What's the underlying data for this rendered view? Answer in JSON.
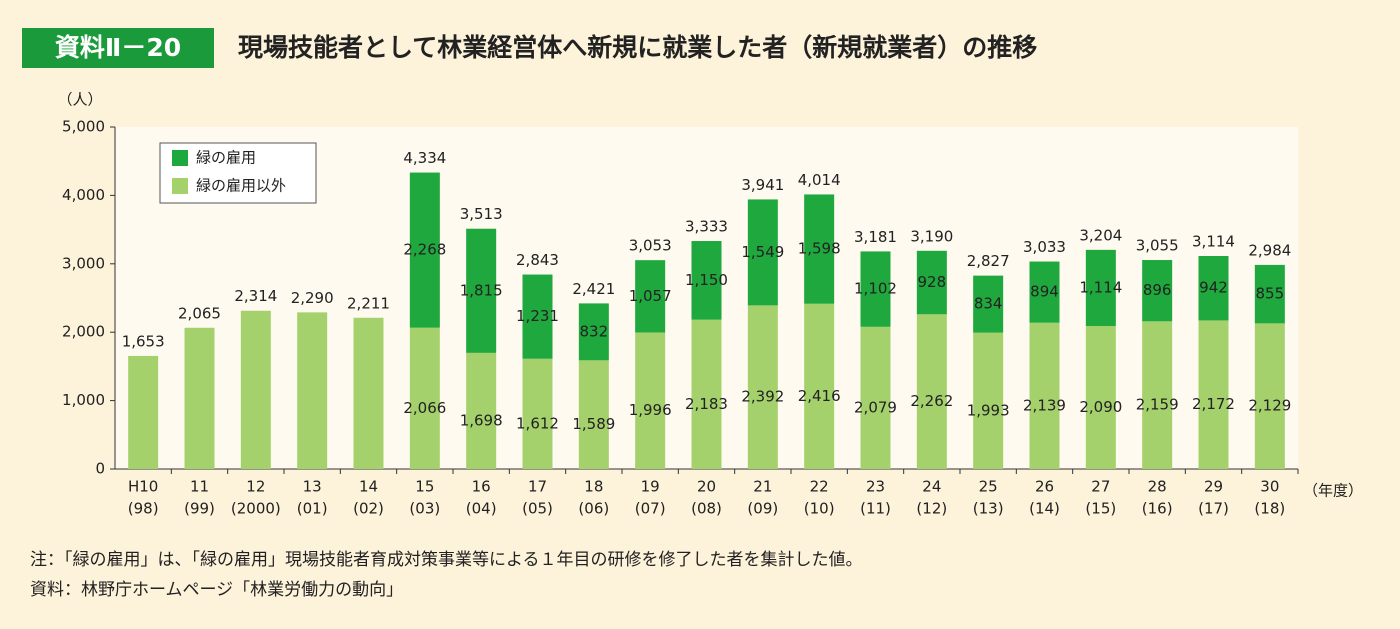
{
  "header": {
    "badge": "資料Ⅱ－20",
    "title": "現場技能者として林業経営体へ新規に就業した者（新規就業者）の推移"
  },
  "chart_data": {
    "type": "stacked-bar",
    "y_unit": "（人）",
    "x_unit": "（年度）",
    "categories": [
      [
        "H10",
        "(98)"
      ],
      [
        "11",
        "(99)"
      ],
      [
        "12",
        "(2000)"
      ],
      [
        "13",
        "(01)"
      ],
      [
        "14",
        "(02)"
      ],
      [
        "15",
        "(03)"
      ],
      [
        "16",
        "(04)"
      ],
      [
        "17",
        "(05)"
      ],
      [
        "18",
        "(06)"
      ],
      [
        "19",
        "(07)"
      ],
      [
        "20",
        "(08)"
      ],
      [
        "21",
        "(09)"
      ],
      [
        "22",
        "(10)"
      ],
      [
        "23",
        "(11)"
      ],
      [
        "24",
        "(12)"
      ],
      [
        "25",
        "(13)"
      ],
      [
        "26",
        "(14)"
      ],
      [
        "27",
        "(15)"
      ],
      [
        "28",
        "(16)"
      ],
      [
        "29",
        "(17)"
      ],
      [
        "30",
        "(18)"
      ]
    ],
    "series": [
      {
        "name": "緑の雇用以外",
        "color": "#a5d16c",
        "values": [
          1653,
          2065,
          2314,
          2290,
          2211,
          2066,
          1698,
          1612,
          1589,
          1996,
          2183,
          2392,
          2416,
          2079,
          2262,
          1993,
          2139,
          2090,
          2159,
          2172,
          2129
        ],
        "value_labels": [
          null,
          null,
          null,
          null,
          null,
          "2,066",
          "1,698",
          "1,612",
          "1,589",
          "1,996",
          "2,183",
          "2,392",
          "2,416",
          "2,079",
          "2,262",
          "1,993",
          "2,139",
          "2,090",
          "2,159",
          "2,172",
          "2,129"
        ]
      },
      {
        "name": "緑の雇用",
        "color": "#1fa83d",
        "values": [
          null,
          null,
          null,
          null,
          null,
          2268,
          1815,
          1231,
          832,
          1057,
          1150,
          1549,
          1598,
          1102,
          928,
          834,
          894,
          1114,
          896,
          942,
          855
        ],
        "value_labels": [
          null,
          null,
          null,
          null,
          null,
          "2,268",
          "1,815",
          "1,231",
          "832",
          "1,057",
          "1,150",
          "1,549",
          "1,598",
          "1,102",
          "928",
          "834",
          "894",
          "1,114",
          "896",
          "942",
          "855"
        ]
      }
    ],
    "totals": {
      "values": [
        1653,
        2065,
        2314,
        2290,
        2211,
        4334,
        3513,
        2843,
        2421,
        3053,
        3333,
        3941,
        4014,
        3181,
        3190,
        2827,
        3033,
        3204,
        3055,
        3114,
        2984
      ],
      "value_labels": [
        "1,653",
        "2,065",
        "2,314",
        "2,290",
        "2,211",
        "4,334",
        "3,513",
        "2,843",
        "2,421",
        "3,053",
        "3,333",
        "3,941",
        "4,014",
        "3,181",
        "3,190",
        "2,827",
        "3,033",
        "3,204",
        "3,055",
        "3,114",
        "2,984"
      ]
    },
    "ylim": [
      0,
      5000
    ],
    "yticks": [
      0,
      {
        "value": 1000,
        "label": "1,000"
      },
      {
        "value": 2000,
        "label": "2,000"
      },
      {
        "value": 3000,
        "label": "3,000"
      },
      {
        "value": 4000,
        "label": "4,000"
      },
      {
        "value": 5000,
        "label": "5,000"
      }
    ],
    "legend": "upper left"
  },
  "notes": [
    "注：「緑の雇用」は、「緑の雇用」現場技能者育成対策事業等による１年目の研修を修了した者を集計した値。",
    "資料：林野庁ホームページ「林業労働力の動向」"
  ]
}
